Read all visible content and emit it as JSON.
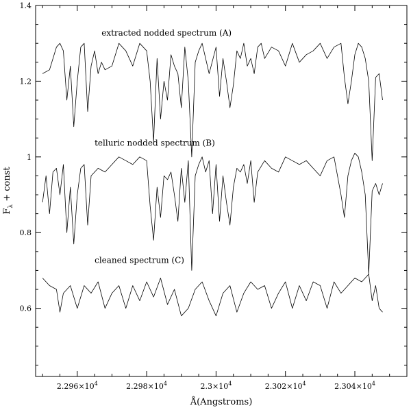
{
  "chart_data": {
    "type": "line",
    "title": "",
    "xlabel": "Å(Angstroms)",
    "ylabel": "F",
    "ylabel_subscript": "λ",
    "ylabel_suffix": " + const",
    "xlim": [
      22948,
      23055
    ],
    "ylim": [
      0.42,
      1.4
    ],
    "xticks": [
      {
        "value": 22960,
        "mantissa": "2.296",
        "exp": "4"
      },
      {
        "value": 22980,
        "mantissa": "2.298",
        "exp": "4"
      },
      {
        "value": 23000,
        "mantissa": "2.3",
        "exp": "4"
      },
      {
        "value": 23020,
        "mantissa": "2.302",
        "exp": "4"
      },
      {
        "value": 23040,
        "mantissa": "2.304",
        "exp": "4"
      }
    ],
    "yticks": [
      {
        "value": 0.6,
        "label": "0.6"
      },
      {
        "value": 0.8,
        "label": "0.8"
      },
      {
        "value": 1.0,
        "label": "1"
      },
      {
        "value": 1.2,
        "label": "1.2"
      },
      {
        "value": 1.4,
        "label": "1.4"
      }
    ],
    "grid": false,
    "series": [
      {
        "name": "extracted nodded spectrum (A)",
        "x": [
          22950,
          22952,
          22954,
          22955,
          22956,
          22957,
          22958,
          22959,
          22960,
          22961,
          22962,
          22963,
          22964,
          22965,
          22966,
          22967,
          22968,
          22970,
          22972,
          22974,
          22976,
          22978,
          22980,
          22981,
          22982,
          22983,
          22984,
          22985,
          22986,
          22987,
          22988,
          22989,
          22990,
          22991,
          22992,
          22993,
          22994,
          22995,
          22996,
          22998,
          23000,
          23001,
          23002,
          23003,
          23004,
          23005,
          23006,
          23007,
          23008,
          23009,
          23010,
          23011,
          23012,
          23013,
          23014,
          23016,
          23018,
          23020,
          23022,
          23024,
          23026,
          23028,
          23030,
          23032,
          23034,
          23036,
          23037,
          23038,
          23039,
          23040,
          23041,
          23042,
          23043,
          23044,
          23045,
          23046,
          23047,
          23048
        ],
        "y": [
          1.22,
          1.23,
          1.29,
          1.3,
          1.28,
          1.15,
          1.24,
          1.08,
          1.2,
          1.29,
          1.3,
          1.12,
          1.24,
          1.28,
          1.22,
          1.25,
          1.23,
          1.24,
          1.3,
          1.28,
          1.24,
          1.3,
          1.28,
          1.2,
          1.04,
          1.26,
          1.1,
          1.2,
          1.15,
          1.27,
          1.24,
          1.22,
          1.13,
          1.29,
          1.2,
          1.0,
          1.25,
          1.28,
          1.3,
          1.22,
          1.29,
          1.16,
          1.26,
          1.2,
          1.13,
          1.19,
          1.28,
          1.26,
          1.3,
          1.24,
          1.26,
          1.22,
          1.29,
          1.3,
          1.26,
          1.29,
          1.28,
          1.24,
          1.3,
          1.25,
          1.27,
          1.28,
          1.3,
          1.26,
          1.29,
          1.3,
          1.21,
          1.14,
          1.2,
          1.27,
          1.3,
          1.29,
          1.26,
          1.2,
          0.99,
          1.21,
          1.22,
          1.15
        ]
      },
      {
        "name": "telluric nodded spectrum (B)",
        "x": [
          22950,
          22951,
          22952,
          22953,
          22954,
          22955,
          22956,
          22957,
          22958,
          22959,
          22960,
          22961,
          22962,
          22963,
          22964,
          22966,
          22968,
          22970,
          22972,
          22974,
          22976,
          22978,
          22980,
          22981,
          22982,
          22983,
          22984,
          22985,
          22986,
          22987,
          22988,
          22989,
          22990,
          22991,
          22992,
          22993,
          22994,
          22995,
          22996,
          22997,
          22998,
          22999,
          23000,
          23001,
          23002,
          23003,
          23004,
          23005,
          23006,
          23007,
          23008,
          23009,
          23010,
          23011,
          23012,
          23014,
          23016,
          23018,
          23020,
          23022,
          23024,
          23026,
          23028,
          23030,
          23032,
          23034,
          23036,
          23037,
          23038,
          23039,
          23040,
          23041,
          23042,
          23043,
          23044,
          23045,
          23046,
          23047,
          23048
        ],
        "y": [
          0.88,
          0.95,
          0.85,
          0.96,
          0.97,
          0.9,
          0.98,
          0.8,
          0.92,
          0.77,
          0.9,
          0.97,
          0.98,
          0.82,
          0.95,
          0.97,
          0.96,
          0.98,
          1.0,
          0.99,
          0.98,
          1.0,
          0.99,
          0.87,
          0.78,
          0.92,
          0.84,
          0.95,
          0.94,
          0.96,
          0.9,
          0.83,
          0.97,
          0.88,
          0.99,
          0.7,
          0.95,
          0.98,
          1.0,
          0.96,
          0.99,
          0.85,
          0.98,
          0.83,
          0.95,
          0.88,
          0.82,
          0.92,
          0.97,
          0.96,
          0.98,
          0.93,
          0.99,
          0.88,
          0.96,
          0.99,
          0.97,
          0.96,
          1.0,
          0.99,
          0.98,
          0.99,
          0.97,
          0.95,
          0.99,
          1.0,
          0.9,
          0.84,
          0.95,
          0.99,
          1.01,
          1.0,
          0.96,
          0.9,
          0.69,
          0.91,
          0.93,
          0.9,
          0.93
        ]
      },
      {
        "name": "cleaned spectrum (C)",
        "x": [
          22950,
          22952,
          22954,
          22955,
          22956,
          22958,
          22960,
          22962,
          22964,
          22966,
          22968,
          22970,
          22972,
          22974,
          22976,
          22978,
          22980,
          22982,
          22984,
          22986,
          22988,
          22990,
          22992,
          22994,
          22996,
          22998,
          23000,
          23002,
          23004,
          23006,
          23008,
          23010,
          23012,
          23014,
          23016,
          23018,
          23020,
          23022,
          23024,
          23026,
          23028,
          23030,
          23032,
          23034,
          23036,
          23038,
          23040,
          23042,
          23044,
          23045,
          23046,
          23047,
          23048
        ],
        "y": [
          0.68,
          0.66,
          0.65,
          0.59,
          0.64,
          0.66,
          0.6,
          0.66,
          0.64,
          0.67,
          0.6,
          0.64,
          0.66,
          0.6,
          0.66,
          0.62,
          0.67,
          0.63,
          0.68,
          0.61,
          0.65,
          0.58,
          0.6,
          0.65,
          0.67,
          0.62,
          0.58,
          0.64,
          0.66,
          0.59,
          0.64,
          0.67,
          0.65,
          0.66,
          0.6,
          0.64,
          0.67,
          0.6,
          0.66,
          0.62,
          0.67,
          0.66,
          0.6,
          0.67,
          0.64,
          0.66,
          0.68,
          0.67,
          0.69,
          0.62,
          0.66,
          0.6,
          0.59
        ]
      }
    ],
    "annotations": [
      {
        "text": "extracted nodded spectrum (A)",
        "x": 22967,
        "y": 1.32
      },
      {
        "text": "telluric nodded spectrum (B)",
        "x": 22965,
        "y": 1.03
      },
      {
        "text": "cleaned spectrum (C)",
        "x": 22965,
        "y": 0.72
      }
    ]
  }
}
